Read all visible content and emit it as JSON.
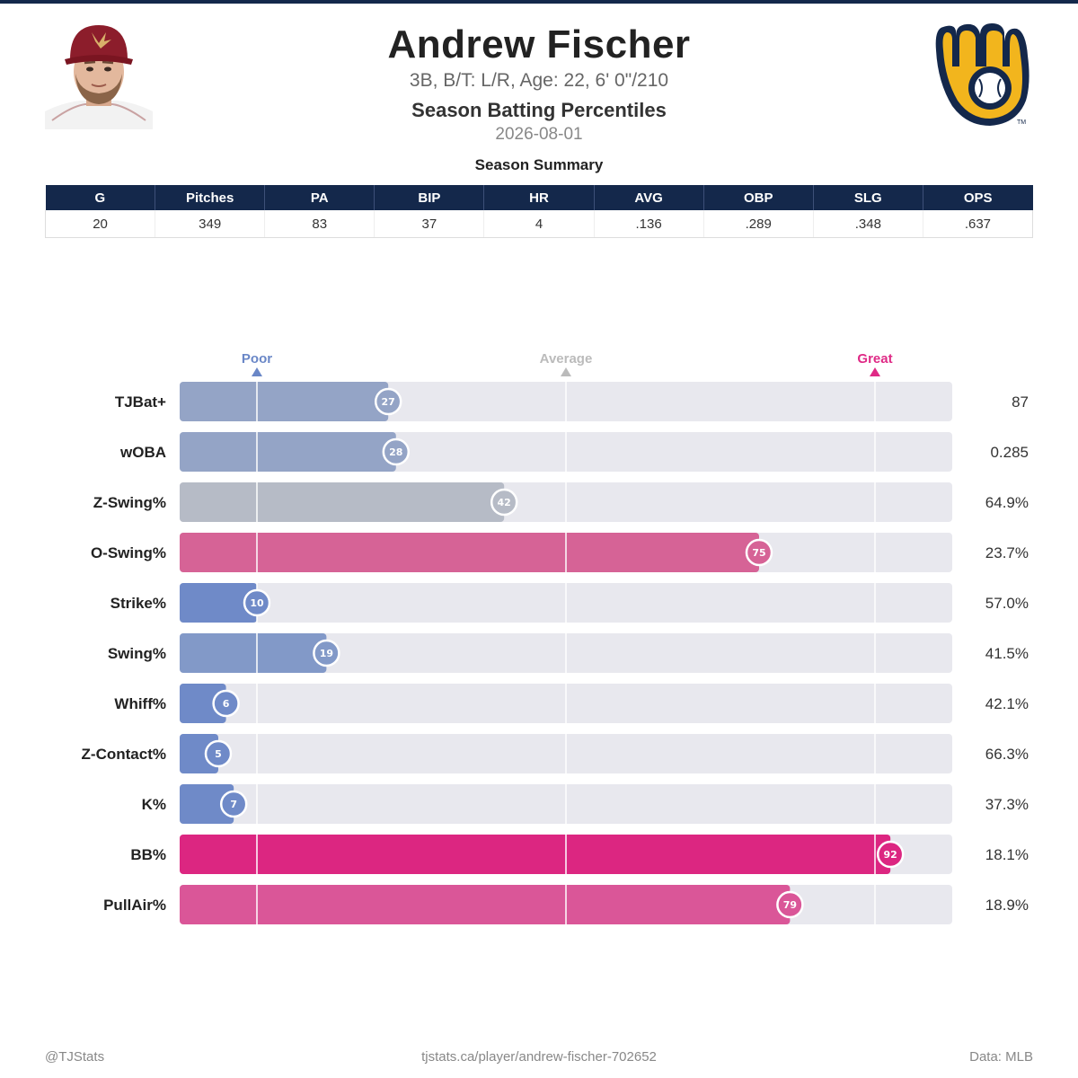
{
  "player": {
    "name": "Andrew Fischer",
    "bio": "3B, B/T: L/R, Age: 22, 6' 0\"/210",
    "subtitle": "Season Batting Percentiles",
    "date": "2026-08-01"
  },
  "team_logo": {
    "trademark": "TM"
  },
  "summary": {
    "title": "Season Summary",
    "headers": [
      "G",
      "Pitches",
      "PA",
      "BIP",
      "HR",
      "AVG",
      "OBP",
      "SLG",
      "OPS"
    ],
    "values": [
      "20",
      "349",
      "83",
      "37",
      "4",
      ".136",
      ".289",
      ".348",
      ".637"
    ]
  },
  "chart_data": {
    "type": "bar",
    "orientation": "horizontal",
    "xlim": [
      0,
      100
    ],
    "reference_markers": [
      {
        "label": "Poor",
        "value": 10,
        "color": "#6a87c7"
      },
      {
        "label": "Average",
        "value": 50,
        "color": "#bbbbbb"
      },
      {
        "label": "Great",
        "value": 90,
        "color": "#df2a86"
      }
    ],
    "categories": [
      "TJBat+",
      "wOBA",
      "Z-Swing%",
      "O-Swing%",
      "Strike%",
      "Swing%",
      "Whiff%",
      "Z-Contact%",
      "K%",
      "BB%",
      "PullAir%"
    ],
    "percentiles": [
      27,
      28,
      42,
      75,
      10,
      19,
      6,
      5,
      7,
      92,
      79
    ],
    "stat_values": [
      "87",
      "0.285",
      "64.9%",
      "23.7%",
      "57.0%",
      "41.5%",
      "42.1%",
      "66.3%",
      "37.3%",
      "18.1%",
      "18.9%"
    ],
    "colors": [
      "#94a4c6",
      "#94a4c6",
      "#b6bbc6",
      "#d66396",
      "#6f8ac8",
      "#8299c8",
      "#6f8ac8",
      "#6f8ac8",
      "#6f8ac8",
      "#dc2681",
      "#da5698"
    ]
  },
  "footer": {
    "left": "@TJStats",
    "center": "tjstats.ca/player/andrew-fischer-702652",
    "right": "Data: MLB"
  }
}
